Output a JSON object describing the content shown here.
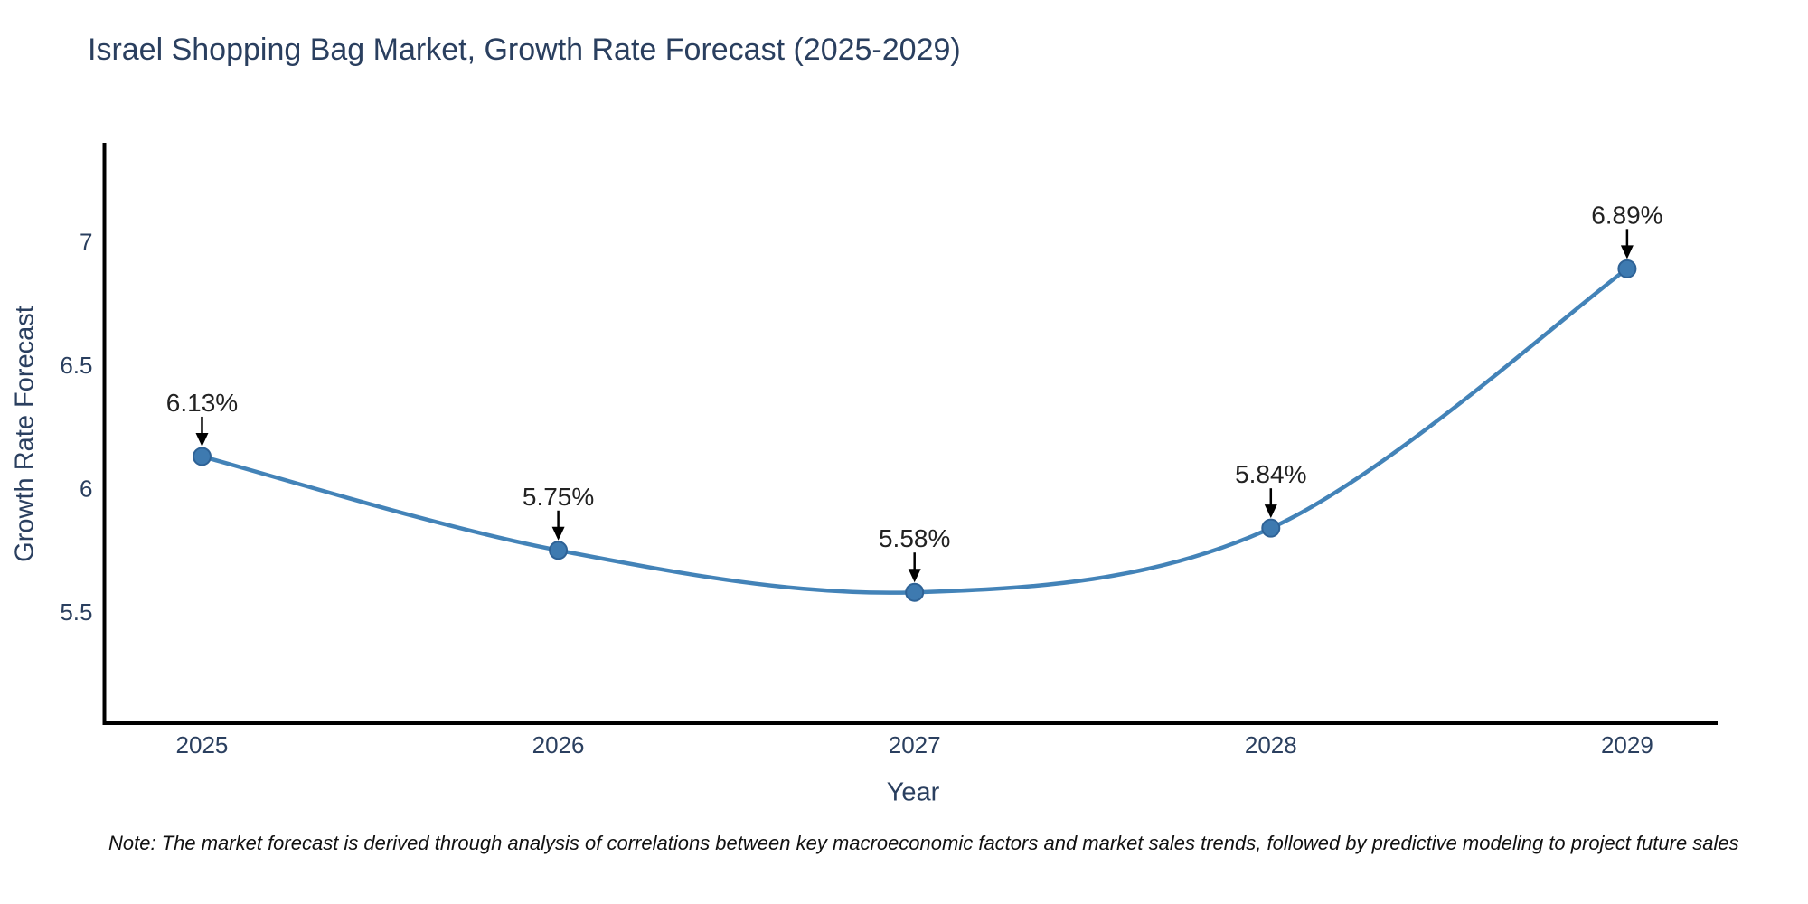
{
  "title": "Israel Shopping Bag Market, Growth Rate Forecast (2025-2029)",
  "footnote": "Note: The market forecast is derived through analysis of correlations between key macroeconomic factors and market sales trends, followed by predictive modeling to project future sales",
  "chart_data": {
    "type": "line",
    "line_shape": "spline",
    "title": "Israel Shopping Bag Market, Growth Rate Forecast (2025-2029)",
    "xlabel": "Year",
    "ylabel": "Growth Rate Forecast",
    "x": [
      2025,
      2026,
      2027,
      2028,
      2029
    ],
    "values": [
      6.13,
      5.75,
      5.58,
      5.84,
      6.89
    ],
    "point_labels": [
      "6.13%",
      "5.75%",
      "5.58%",
      "5.84%",
      "6.89%"
    ],
    "xticks": [
      2025,
      2026,
      2027,
      2028,
      2029
    ],
    "yticks": [
      5.5,
      6,
      6.5,
      7
    ],
    "xlim": [
      2024.726,
      2029.254
    ],
    "ylim": [
      5.05,
      7.4
    ],
    "grid": false,
    "legend": false,
    "colors": {
      "line": "#4383b8",
      "marker_fill": "#3e7ab0",
      "marker_edge": "#2e6296",
      "axis": "#000000",
      "tick_text": "#2a3f5f",
      "annotation_text": "#222222",
      "arrow": "#000000"
    }
  }
}
